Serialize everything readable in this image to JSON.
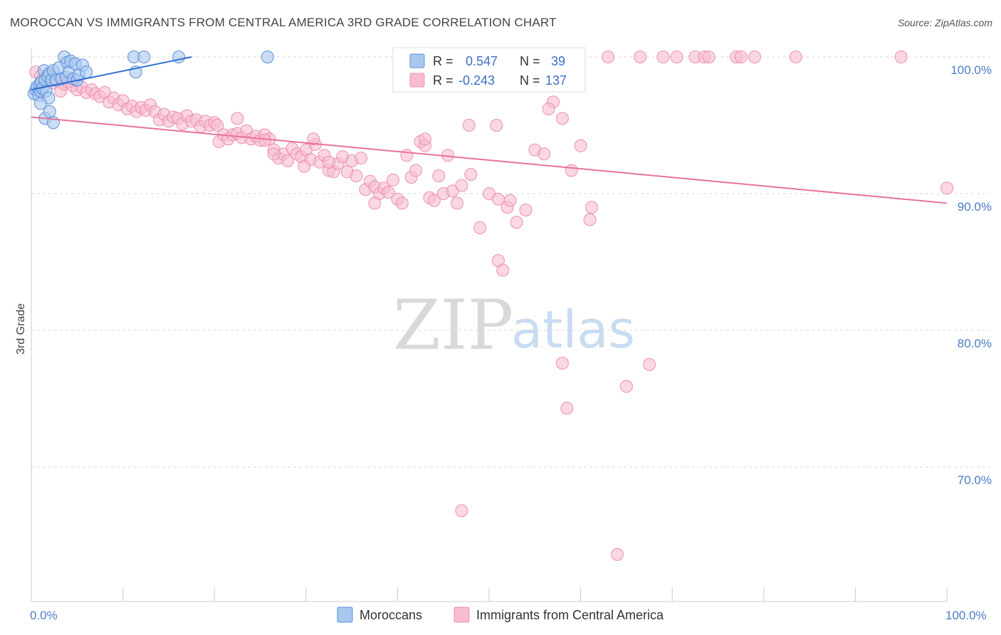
{
  "title": "MOROCCAN VS IMMIGRANTS FROM CENTRAL AMERICA 3RD GRADE CORRELATION CHART",
  "source": "Source: ZipAtlas.com",
  "watermark": {
    "zip": "ZIP",
    "atlas": "atlas"
  },
  "legend": {
    "rows": [
      {
        "r_label": "R =",
        "r_value": "0.547",
        "n_label": "N =",
        "n_value": "39"
      },
      {
        "r_label": "R =",
        "r_value": "-0.243",
        "n_label": "N =",
        "n_value": "137"
      }
    ]
  },
  "bottom_legend": [
    "Moroccans",
    "Immigrants from Central America"
  ],
  "colors": {
    "blue_fill": "#a9c8f0",
    "blue_stroke": "#5b8fd6",
    "blue_line": "#2f6fce",
    "pink_fill": "#f7bcd0",
    "pink_stroke": "#ec8fb0",
    "pink_line": "#e8729b",
    "grid": "#d8d8d8",
    "tick_text": "#4a7cc7"
  },
  "chart_data": {
    "type": "scatter",
    "title": "MOROCCAN VS IMMIGRANTS FROM CENTRAL AMERICA 3RD GRADE CORRELATION CHART",
    "xlabel": "",
    "ylabel": "3rd Grade",
    "xlim": [
      0,
      100
    ],
    "ylim": [
      62.2,
      100.6
    ],
    "x_tick_labels": [
      "0.0%",
      "100.0%"
    ],
    "y_ticks": [
      70,
      80,
      90,
      100
    ],
    "y_tick_labels": [
      "70.0%",
      "80.0%",
      "90.0%",
      "100.0%"
    ],
    "grid": true,
    "legend_position": "top-center",
    "series": [
      {
        "name": "Moroccans",
        "color": "#a9c8f0",
        "trend": {
          "x": [
            0,
            17.5
          ],
          "y": [
            97.6,
            100.0
          ]
        },
        "points": [
          [
            0.3,
            97.3
          ],
          [
            0.5,
            97.6
          ],
          [
            0.6,
            97.8
          ],
          [
            0.8,
            97.2
          ],
          [
            0.9,
            98.0
          ],
          [
            1.0,
            97.5
          ],
          [
            1.1,
            98.2
          ],
          [
            1.2,
            97.7
          ],
          [
            1.4,
            99.0
          ],
          [
            1.5,
            98.3
          ],
          [
            1.6,
            97.5
          ],
          [
            1.8,
            98.6
          ],
          [
            1.9,
            97.0
          ],
          [
            2.0,
            98.8
          ],
          [
            2.2,
            98.3
          ],
          [
            2.4,
            99.0
          ],
          [
            2.7,
            98.3
          ],
          [
            3.0,
            99.2
          ],
          [
            3.3,
            98.4
          ],
          [
            3.6,
            100.0
          ],
          [
            3.8,
            98.5
          ],
          [
            3.9,
            99.6
          ],
          [
            4.1,
            98.9
          ],
          [
            4.3,
            99.7
          ],
          [
            4.6,
            98.4
          ],
          [
            4.8,
            99.5
          ],
          [
            5.0,
            98.3
          ],
          [
            5.2,
            98.7
          ],
          [
            5.6,
            99.4
          ],
          [
            6.0,
            98.9
          ],
          [
            1.0,
            96.6
          ],
          [
            1.5,
            95.5
          ],
          [
            2.0,
            96.0
          ],
          [
            2.4,
            95.2
          ],
          [
            11.2,
            100.0
          ],
          [
            12.3,
            100.0
          ],
          [
            11.4,
            98.9
          ],
          [
            16.1,
            100.0
          ],
          [
            25.8,
            100.0
          ]
        ]
      },
      {
        "name": "Immigrants from Central America",
        "color": "#f7bcd0",
        "trend": {
          "x": [
            0,
            100
          ],
          "y": [
            95.6,
            89.3
          ]
        },
        "points": [
          [
            0.5,
            98.9
          ],
          [
            1.0,
            98.6
          ],
          [
            1.4,
            98.2
          ],
          [
            1.8,
            98.7
          ],
          [
            2.3,
            98.1
          ],
          [
            2.8,
            98.3
          ],
          [
            3.2,
            97.5
          ],
          [
            3.6,
            98.0
          ],
          [
            4.0,
            98.2
          ],
          [
            4.5,
            97.9
          ],
          [
            5.0,
            97.6
          ],
          [
            5.5,
            97.8
          ],
          [
            6.0,
            97.4
          ],
          [
            6.6,
            97.6
          ],
          [
            7.0,
            97.3
          ],
          [
            7.5,
            97.1
          ],
          [
            8.0,
            97.4
          ],
          [
            8.5,
            96.7
          ],
          [
            9.0,
            97.0
          ],
          [
            9.5,
            96.5
          ],
          [
            10.0,
            96.8
          ],
          [
            10.5,
            96.2
          ],
          [
            11.0,
            96.4
          ],
          [
            11.5,
            96.0
          ],
          [
            12.0,
            96.3
          ],
          [
            12.5,
            96.1
          ],
          [
            13.0,
            96.5
          ],
          [
            13.5,
            96.0
          ],
          [
            14.0,
            95.4
          ],
          [
            14.5,
            95.8
          ],
          [
            15.0,
            95.3
          ],
          [
            15.5,
            95.6
          ],
          [
            16.0,
            95.5
          ],
          [
            16.5,
            95.1
          ],
          [
            17.0,
            95.7
          ],
          [
            17.5,
            95.3
          ],
          [
            18.0,
            95.4
          ],
          [
            18.5,
            94.9
          ],
          [
            19.0,
            95.3
          ],
          [
            19.5,
            95.0
          ],
          [
            20.0,
            95.2
          ],
          [
            20.5,
            93.8
          ],
          [
            21.0,
            94.3
          ],
          [
            21.5,
            94.0
          ],
          [
            22.0,
            94.3
          ],
          [
            22.5,
            94.4
          ],
          [
            23.0,
            94.1
          ],
          [
            23.5,
            94.6
          ],
          [
            24.0,
            94.0
          ],
          [
            24.5,
            94.2
          ],
          [
            25.0,
            93.9
          ],
          [
            25.5,
            94.3
          ],
          [
            26.0,
            94.0
          ],
          [
            26.5,
            93.2
          ],
          [
            27.0,
            92.6
          ],
          [
            27.5,
            92.9
          ],
          [
            28.0,
            92.4
          ],
          [
            28.5,
            93.3
          ],
          [
            29.0,
            92.9
          ],
          [
            29.5,
            92.7
          ],
          [
            30.0,
            93.2
          ],
          [
            30.5,
            92.5
          ],
          [
            31.0,
            93.6
          ],
          [
            31.5,
            92.3
          ],
          [
            32.0,
            92.8
          ],
          [
            32.5,
            91.7
          ],
          [
            33.0,
            91.6
          ],
          [
            33.5,
            92.2
          ],
          [
            34.0,
            92.7
          ],
          [
            34.5,
            91.6
          ],
          [
            35.0,
            92.4
          ],
          [
            35.5,
            91.3
          ],
          [
            36.0,
            92.6
          ],
          [
            36.5,
            90.3
          ],
          [
            37.0,
            90.9
          ],
          [
            37.5,
            90.5
          ],
          [
            38.0,
            90.0
          ],
          [
            38.5,
            90.4
          ],
          [
            39.0,
            90.1
          ],
          [
            39.5,
            91.0
          ],
          [
            40.0,
            89.6
          ],
          [
            40.5,
            89.3
          ],
          [
            41.0,
            92.8
          ],
          [
            41.5,
            91.2
          ],
          [
            42.0,
            91.7
          ],
          [
            42.5,
            93.8
          ],
          [
            43.0,
            93.5
          ],
          [
            43.5,
            89.7
          ],
          [
            44.0,
            89.5
          ],
          [
            44.5,
            91.3
          ],
          [
            45.0,
            90.0
          ],
          [
            45.5,
            92.8
          ],
          [
            46.0,
            90.2
          ],
          [
            46.5,
            89.3
          ],
          [
            47.0,
            90.6
          ],
          [
            48.0,
            91.4
          ],
          [
            49.0,
            87.5
          ],
          [
            50.0,
            90.0
          ],
          [
            51.0,
            89.6
          ],
          [
            52.0,
            89.0
          ],
          [
            53.0,
            87.9
          ],
          [
            54.0,
            88.8
          ],
          [
            55.0,
            93.2
          ],
          [
            56.0,
            92.9
          ],
          [
            57.0,
            96.7
          ],
          [
            58.0,
            95.5
          ],
          [
            59.0,
            91.7
          ],
          [
            60.0,
            93.5
          ],
          [
            61.0,
            88.1
          ],
          [
            20.3,
            95.0
          ],
          [
            22.5,
            95.5
          ],
          [
            25.5,
            93.9
          ],
          [
            26.5,
            92.9
          ],
          [
            29.8,
            92.0
          ],
          [
            30.8,
            94.0
          ],
          [
            32.5,
            92.3
          ],
          [
            37.5,
            89.3
          ],
          [
            43.0,
            94.0
          ],
          [
            47.8,
            95.0
          ],
          [
            50.8,
            95.0
          ],
          [
            52.3,
            89.5
          ],
          [
            51.0,
            85.1
          ],
          [
            51.5,
            84.4
          ],
          [
            56.5,
            96.2
          ],
          [
            58.0,
            77.6
          ],
          [
            61.2,
            89.0
          ],
          [
            58.5,
            74.3
          ],
          [
            65.0,
            75.9
          ],
          [
            67.5,
            77.5
          ],
          [
            47.0,
            66.8
          ],
          [
            64.0,
            63.6
          ],
          [
            63.0,
            100.0
          ],
          [
            66.5,
            100.0
          ],
          [
            69.0,
            100.0
          ],
          [
            70.5,
            100.0
          ],
          [
            72.5,
            100.0
          ],
          [
            73.5,
            100.0
          ],
          [
            74.0,
            100.0
          ],
          [
            77.0,
            100.0
          ],
          [
            77.5,
            100.0
          ],
          [
            79.0,
            100.0
          ],
          [
            83.5,
            100.0
          ],
          [
            95.0,
            100.0
          ],
          [
            100.0,
            90.4
          ]
        ]
      }
    ]
  }
}
